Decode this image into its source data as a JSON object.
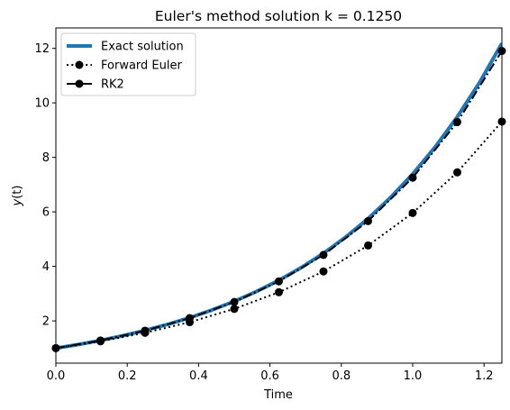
{
  "chart_data": {
    "type": "line",
    "title": "Euler's method solution k = 0.1250",
    "xlabel": "Time",
    "ylabel_var": "y",
    "ylabel_arg": "(t)",
    "xlim": [
      0.0,
      1.25
    ],
    "ylim": [
      0.45,
      12.75
    ],
    "xticks": [
      0.0,
      0.2,
      0.4,
      0.6,
      0.8,
      1.0,
      1.2
    ],
    "xtick_labels": [
      "0.0",
      "0.2",
      "0.4",
      "0.6",
      "0.8",
      "1.0",
      "1.2"
    ],
    "yticks": [
      2,
      4,
      6,
      8,
      10,
      12
    ],
    "ytick_labels": [
      "2",
      "4",
      "6",
      "8",
      "10",
      "12"
    ],
    "grid": false,
    "legend_position": "top-left",
    "series": [
      {
        "name": "Exact solution",
        "color": "#1f77b4",
        "style": "solid-thick",
        "x": [
          0.0,
          0.0625,
          0.125,
          0.1875,
          0.25,
          0.3125,
          0.375,
          0.4375,
          0.5,
          0.5625,
          0.625,
          0.6875,
          0.75,
          0.8125,
          0.875,
          0.9375,
          1.0,
          1.0625,
          1.125,
          1.1875,
          1.25
        ],
        "values": [
          1.0,
          1.133,
          1.284,
          1.455,
          1.649,
          1.868,
          2.117,
          2.399,
          2.718,
          3.08,
          3.49,
          3.955,
          4.482,
          5.078,
          5.755,
          6.521,
          7.389,
          8.373,
          9.488,
          10.751,
          12.182
        ]
      },
      {
        "name": "Forward Euler",
        "color": "#000000",
        "style": "dotted-markers",
        "x": [
          0.0,
          0.125,
          0.25,
          0.375,
          0.5,
          0.625,
          0.75,
          0.875,
          1.0,
          1.125,
          1.25
        ],
        "values": [
          1.0,
          1.25,
          1.5625,
          1.953,
          2.441,
          3.052,
          3.815,
          4.768,
          5.96,
          7.451,
          9.313
        ]
      },
      {
        "name": "RK2",
        "color": "#000000",
        "style": "dashdot-markers",
        "x": [
          0.0,
          0.125,
          0.25,
          0.375,
          0.5,
          0.625,
          0.75,
          0.875,
          1.0,
          1.125,
          1.25
        ],
        "values": [
          1.0,
          1.281,
          1.641,
          2.103,
          2.694,
          3.451,
          4.421,
          5.663,
          7.254,
          9.293,
          11.905
        ]
      }
    ]
  }
}
